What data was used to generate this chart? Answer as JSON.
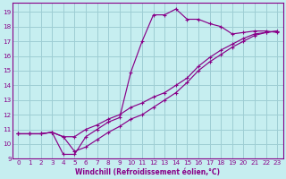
{
  "xlabel": "Windchill (Refroidissement éolien,°C)",
  "bg_color": "#c6eef0",
  "grid_color": "#9ecdd4",
  "line_color": "#880088",
  "spine_color": "#880088",
  "xlim": [
    -0.5,
    23.5
  ],
  "ylim": [
    9,
    19.6
  ],
  "xticks": [
    0,
    1,
    2,
    3,
    4,
    5,
    6,
    7,
    8,
    9,
    10,
    11,
    12,
    13,
    14,
    15,
    16,
    17,
    18,
    19,
    20,
    21,
    22,
    23
  ],
  "yticks": [
    9,
    10,
    11,
    12,
    13,
    14,
    15,
    16,
    17,
    18,
    19
  ],
  "curve_spiky_x": [
    0,
    1,
    2,
    3,
    4,
    5,
    6,
    7,
    8,
    9,
    10,
    11,
    12,
    13,
    14,
    15,
    16,
    17,
    18,
    19,
    20,
    21,
    22,
    23
  ],
  "curve_spiky_y": [
    10.7,
    10.7,
    10.7,
    10.8,
    9.3,
    9.3,
    10.5,
    11.0,
    11.5,
    11.8,
    14.9,
    17.0,
    18.8,
    18.8,
    19.2,
    18.5,
    18.5,
    18.2,
    18.0,
    17.5,
    17.6,
    17.7,
    17.7,
    17.6
  ],
  "curve_upper_x": [
    0,
    1,
    2,
    3,
    4,
    5,
    6,
    7,
    8,
    9,
    10,
    11,
    12,
    13,
    14,
    15,
    16,
    17,
    18,
    19,
    20,
    21,
    22,
    23
  ],
  "curve_upper_y": [
    10.7,
    10.7,
    10.7,
    10.8,
    10.5,
    10.5,
    11.0,
    11.3,
    11.7,
    12.0,
    12.5,
    12.8,
    13.2,
    13.5,
    14.0,
    14.5,
    15.3,
    15.9,
    16.4,
    16.8,
    17.2,
    17.5,
    17.6,
    17.7
  ],
  "curve_lower_x": [
    0,
    1,
    2,
    3,
    4,
    5,
    6,
    7,
    8,
    9,
    10,
    11,
    12,
    13,
    14,
    15,
    16,
    17,
    18,
    19,
    20,
    21,
    22,
    23
  ],
  "curve_lower_y": [
    10.7,
    10.7,
    10.7,
    10.8,
    10.5,
    9.5,
    9.8,
    10.3,
    10.8,
    11.2,
    11.7,
    12.0,
    12.5,
    13.0,
    13.5,
    14.2,
    15.0,
    15.6,
    16.1,
    16.6,
    17.0,
    17.4,
    17.6,
    17.7
  ]
}
